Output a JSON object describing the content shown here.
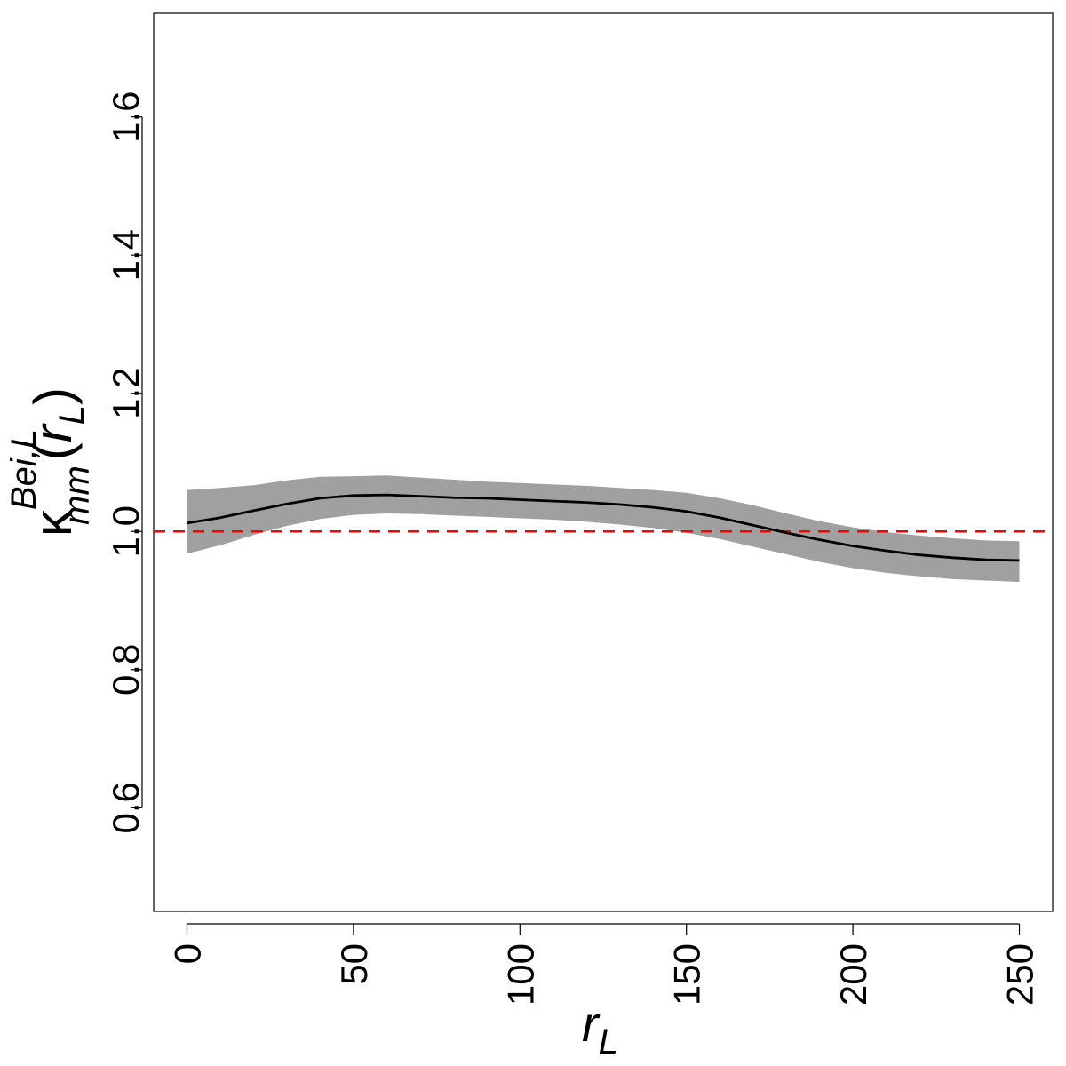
{
  "chart_data": {
    "type": "line",
    "title": "",
    "xlabel": {
      "main": "r",
      "sub": "L"
    },
    "ylabel": {
      "kappa": "κ",
      "sup": "Bei,L",
      "sub": "mm",
      "open": "(",
      "r": "r",
      "rsub": "L",
      "close": ")"
    },
    "xlim": [
      -10,
      260
    ],
    "ylim": [
      0.45,
      1.75
    ],
    "x_ticks": [
      0,
      50,
      100,
      150,
      200,
      250
    ],
    "x_tick_labels": [
      "0",
      "50",
      "100",
      "150",
      "200",
      "250"
    ],
    "y_ticks": [
      0.6,
      0.8,
      1.0,
      1.2,
      1.4,
      1.6
    ],
    "y_tick_labels": [
      "0.6",
      "0.8",
      "1.0",
      "1.2",
      "1.4",
      "1.6"
    ],
    "grid": false,
    "reference_line": {
      "y": 1.0,
      "style": "dashed",
      "color": "#ff0000"
    },
    "series": [
      {
        "x": [
          0,
          10,
          20,
          30,
          40,
          50,
          60,
          70,
          80,
          90,
          100,
          110,
          120,
          130,
          140,
          150,
          160,
          170,
          180,
          190,
          200,
          210,
          220,
          230,
          240,
          250
        ],
        "y": [
          1.012,
          1.02,
          1.03,
          1.04,
          1.048,
          1.052,
          1.053,
          1.051,
          1.049,
          1.048,
          1.046,
          1.044,
          1.042,
          1.039,
          1.035,
          1.029,
          1.02,
          1.009,
          0.998,
          0.988,
          0.979,
          0.972,
          0.966,
          0.962,
          0.959,
          0.958
        ],
        "color": "#000000"
      }
    ],
    "envelope": {
      "x": [
        0,
        10,
        20,
        30,
        40,
        50,
        60,
        70,
        80,
        90,
        100,
        110,
        120,
        130,
        140,
        150,
        160,
        170,
        180,
        190,
        200,
        210,
        220,
        230,
        240,
        250
      ],
      "lower": [
        0.968,
        0.98,
        0.995,
        1.008,
        1.018,
        1.024,
        1.026,
        1.025,
        1.023,
        1.021,
        1.019,
        1.017,
        1.014,
        1.01,
        1.005,
        0.998,
        0.989,
        0.978,
        0.967,
        0.956,
        0.947,
        0.94,
        0.935,
        0.931,
        0.929,
        0.927
      ],
      "upper": [
        1.06,
        1.063,
        1.067,
        1.074,
        1.079,
        1.08,
        1.081,
        1.078,
        1.075,
        1.072,
        1.07,
        1.068,
        1.066,
        1.063,
        1.06,
        1.056,
        1.048,
        1.038,
        1.026,
        1.015,
        1.006,
        0.999,
        0.994,
        0.99,
        0.987,
        0.986
      ],
      "color": "#a0a0a0"
    }
  }
}
